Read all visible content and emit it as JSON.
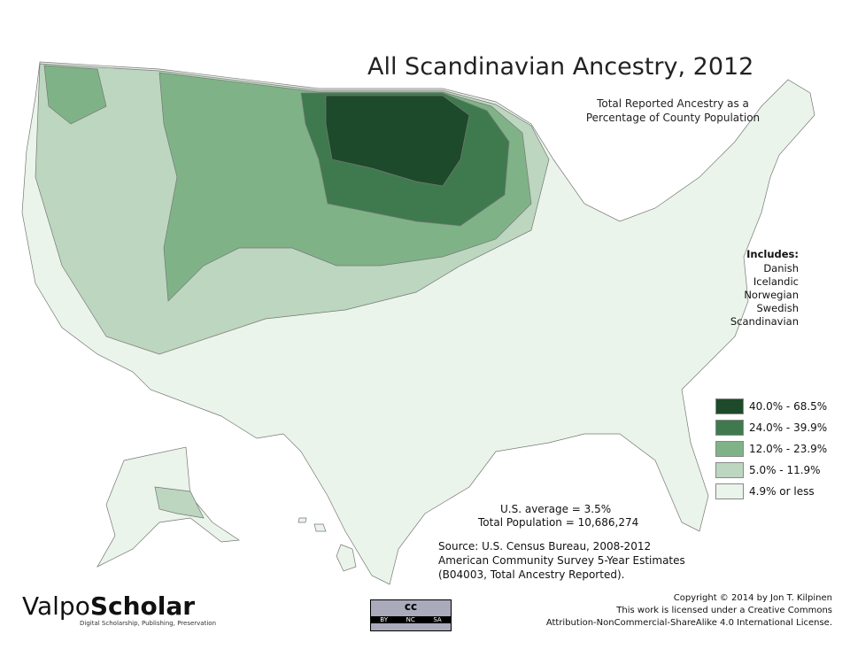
{
  "header": {
    "title": "All Scandinavian Ancestry, 2012",
    "subtitle": [
      "Total Reported Ancestry as a",
      "Percentage of County Population"
    ]
  },
  "includes": {
    "heading": "Includes:",
    "items": [
      "Danish",
      "Icelandic",
      "Norwegian",
      "Swedish",
      "Scandinavian"
    ]
  },
  "legend": [
    {
      "label": "40.0% - 68.5%",
      "color": "#1d4a2a"
    },
    {
      "label": "24.0% - 39.9%",
      "color": "#3f7a4e"
    },
    {
      "label": "12.0% - 23.9%",
      "color": "#7fb387"
    },
    {
      "label": "5.0% - 11.9%",
      "color": "#bcd6bf"
    },
    {
      "label": "4.9% or less",
      "color": "#eaf4ea"
    }
  ],
  "stats": [
    "U.S. average = 3.5%",
    "Total Population = 10,686,274"
  ],
  "source": [
    "Source:  U.S. Census Bureau, 2008-2012",
    "American Community Survey 5-Year Estimates",
    "(B04003, Total Ancestry Reported)."
  ],
  "branding": {
    "prefix": "Valpo",
    "name": "Scholar",
    "tagline": "Digital Scholarship, Publishing, Preservation"
  },
  "license_badge": {
    "symbol": "cc",
    "terms": [
      "BY",
      "NC",
      "SA"
    ]
  },
  "copyright": [
    "Copyright © 2014 by Jon T. Kilpinen",
    "This work is licensed under a Creative Commons",
    "Attribution-NonCommercial-ShareAlike 4.0 International License."
  ]
}
